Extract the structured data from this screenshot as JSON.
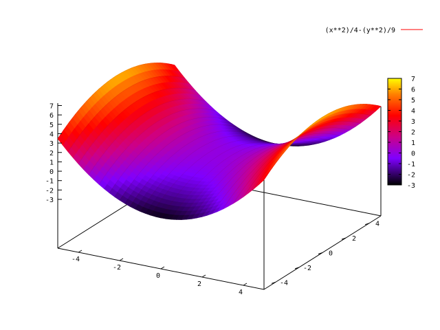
{
  "chart_data": {
    "type": "surface",
    "function": "(x**2)/4-(y**2)/9",
    "legend": {
      "label": "(x**2)/4-(y**2)/9",
      "line_color": "#ff0000",
      "position": "top-right"
    },
    "x_range": [
      -5,
      5
    ],
    "y_range": [
      -5,
      5
    ],
    "z_range": [
      -3,
      7
    ],
    "x_ticks": [
      "-4",
      "-2",
      "0",
      "2",
      "4"
    ],
    "y_ticks": [
      "-4",
      "-2",
      "0",
      "2",
      "4"
    ],
    "z_ticks": [
      "7",
      "6",
      "5",
      "4",
      "3",
      "2",
      "1",
      "0",
      "-1",
      "-2",
      "-3"
    ],
    "colorbox": {
      "range": [
        -3,
        7
      ],
      "ticks": [
        "7",
        "6",
        "5",
        "4",
        "3",
        "2",
        "1",
        "0",
        "-1",
        "-2",
        "-3"
      ],
      "palette": [
        "#000000",
        "#7f00ff",
        "#cc0088",
        "#ff0000",
        "#ff8000",
        "#ffff00"
      ]
    },
    "grid": false
  }
}
